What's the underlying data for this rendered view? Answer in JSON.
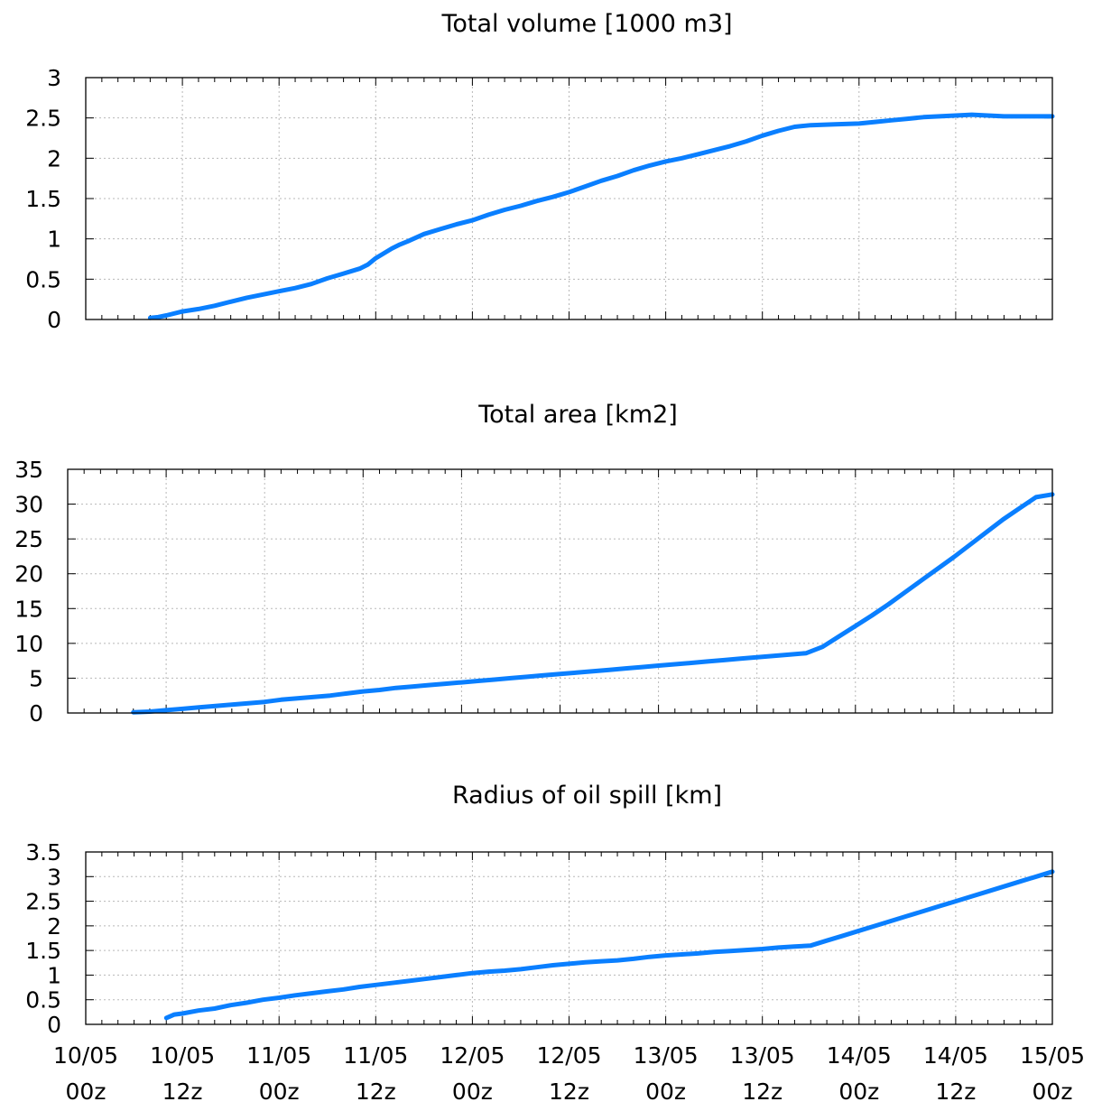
{
  "chart_data": [
    {
      "type": "line",
      "title": "Total volume [1000 m3]",
      "xlabel": "",
      "ylabel": "",
      "xlim": [
        0,
        120
      ],
      "ylim": [
        0,
        3
      ],
      "yticks": [
        0,
        0.5,
        1,
        1.5,
        2,
        2.5,
        3
      ],
      "ytick_labels": [
        "0",
        "0.5",
        "1",
        "1.5",
        "2",
        "2.5",
        "3"
      ],
      "xticks": [
        0,
        12,
        24,
        36,
        48,
        60,
        72,
        84,
        96,
        108,
        120
      ],
      "grid": true,
      "color": "#0a7fff",
      "series": [
        {
          "x": [
            8,
            9,
            10,
            12,
            14,
            16,
            18,
            20,
            22,
            24,
            26,
            28,
            30,
            32,
            34,
            35,
            36,
            38,
            39,
            40,
            42,
            44,
            46,
            48,
            50,
            52,
            54,
            56,
            58,
            60,
            62,
            64,
            66,
            68,
            70,
            72,
            74,
            76,
            78,
            80,
            82,
            84,
            86,
            88,
            90,
            93,
            96,
            98,
            100,
            102,
            104,
            106,
            108,
            110,
            112,
            114,
            116,
            118,
            120
          ],
          "y": [
            0.02,
            0.03,
            0.05,
            0.1,
            0.13,
            0.17,
            0.22,
            0.27,
            0.31,
            0.35,
            0.39,
            0.44,
            0.51,
            0.57,
            0.63,
            0.68,
            0.76,
            0.88,
            0.93,
            0.97,
            1.06,
            1.12,
            1.18,
            1.23,
            1.3,
            1.36,
            1.41,
            1.47,
            1.52,
            1.58,
            1.65,
            1.72,
            1.78,
            1.85,
            1.91,
            1.96,
            2.0,
            2.05,
            2.1,
            2.15,
            2.21,
            2.28,
            2.34,
            2.39,
            2.41,
            2.42,
            2.43,
            2.45,
            2.47,
            2.49,
            2.51,
            2.52,
            2.53,
            2.54,
            2.53,
            2.52,
            2.52,
            2.52,
            2.52
          ]
        }
      ]
    },
    {
      "type": "line",
      "title": "Total area [km2]",
      "xlabel": "",
      "ylabel": "",
      "xlim": [
        0,
        120
      ],
      "ylim": [
        0,
        35
      ],
      "yticks": [
        0,
        5,
        10,
        15,
        20,
        25,
        30,
        35
      ],
      "ytick_labels": [
        "0",
        "5",
        "10",
        "15",
        "20",
        "25",
        "30",
        "35"
      ],
      "xticks": [
        0,
        12,
        24,
        36,
        48,
        60,
        72,
        84,
        96,
        108,
        120
      ],
      "grid": true,
      "color": "#0a7fff",
      "series": [
        {
          "x": [
            8,
            10,
            12,
            14,
            16,
            18,
            20,
            22,
            24,
            26,
            28,
            30,
            32,
            34,
            36,
            38,
            40,
            42,
            44,
            46,
            48,
            50,
            52,
            54,
            56,
            58,
            60,
            62,
            64,
            66,
            68,
            70,
            72,
            74,
            76,
            78,
            80,
            82,
            84,
            86,
            88,
            90,
            92,
            94,
            96,
            98,
            100,
            102,
            104,
            106,
            108,
            110,
            112,
            114,
            116,
            118,
            120
          ],
          "y": [
            0.1,
            0.2,
            0.4,
            0.6,
            0.8,
            1.0,
            1.2,
            1.4,
            1.6,
            1.9,
            2.1,
            2.3,
            2.5,
            2.8,
            3.1,
            3.3,
            3.6,
            3.8,
            4.0,
            4.2,
            4.4,
            4.6,
            4.8,
            5.0,
            5.2,
            5.4,
            5.6,
            5.8,
            6.0,
            6.2,
            6.4,
            6.6,
            6.8,
            7.0,
            7.2,
            7.4,
            7.6,
            7.8,
            8.0,
            8.2,
            8.4,
            8.6,
            9.5,
            11.0,
            12.5,
            14.0,
            15.6,
            17.3,
            19.0,
            20.7,
            22.4,
            24.2,
            26.0,
            27.8,
            29.4,
            31.0,
            31.4
          ]
        }
      ]
    },
    {
      "type": "line",
      "title": "Radius of oil spill [km]",
      "xlabel": "",
      "ylabel": "",
      "xlim": [
        0,
        120
      ],
      "ylim": [
        0,
        3.5
      ],
      "yticks": [
        0,
        0.5,
        1,
        1.5,
        2,
        2.5,
        3,
        3.5
      ],
      "ytick_labels": [
        "0",
        "0.5",
        "1",
        "1.5",
        "2",
        "2.5",
        "3",
        "3.5"
      ],
      "xticks": [
        0,
        12,
        24,
        36,
        48,
        60,
        72,
        84,
        96,
        108,
        120
      ],
      "xtick_labels": [
        [
          "10/05",
          "00z"
        ],
        [
          "10/05",
          "12z"
        ],
        [
          "11/05",
          "00z"
        ],
        [
          "11/05",
          "12z"
        ],
        [
          "12/05",
          "00z"
        ],
        [
          "12/05",
          "12z"
        ],
        [
          "13/05",
          "00z"
        ],
        [
          "13/05",
          "12z"
        ],
        [
          "14/05",
          "00z"
        ],
        [
          "14/05",
          "12z"
        ],
        [
          "15/05",
          "00z"
        ]
      ],
      "grid": true,
      "color": "#0a7fff",
      "series": [
        {
          "x": [
            10,
            11,
            12,
            14,
            16,
            18,
            20,
            22,
            24,
            26,
            28,
            30,
            32,
            34,
            36,
            38,
            40,
            42,
            44,
            46,
            48,
            50,
            52,
            54,
            56,
            58,
            60,
            62,
            64,
            66,
            68,
            70,
            72,
            74,
            76,
            78,
            80,
            82,
            84,
            86,
            88,
            90,
            92,
            94,
            96,
            98,
            100,
            102,
            104,
            106,
            108,
            110,
            112,
            114,
            116,
            118,
            120
          ],
          "y": [
            0.13,
            0.2,
            0.22,
            0.28,
            0.32,
            0.39,
            0.44,
            0.5,
            0.54,
            0.59,
            0.63,
            0.67,
            0.71,
            0.76,
            0.8,
            0.84,
            0.88,
            0.92,
            0.96,
            1.0,
            1.04,
            1.07,
            1.09,
            1.12,
            1.16,
            1.2,
            1.23,
            1.26,
            1.28,
            1.3,
            1.33,
            1.37,
            1.4,
            1.42,
            1.44,
            1.47,
            1.49,
            1.51,
            1.53,
            1.56,
            1.58,
            1.6,
            1.7,
            1.8,
            1.9,
            2.0,
            2.1,
            2.2,
            2.3,
            2.4,
            2.5,
            2.6,
            2.7,
            2.8,
            2.9,
            3.0,
            3.1
          ]
        }
      ]
    }
  ]
}
